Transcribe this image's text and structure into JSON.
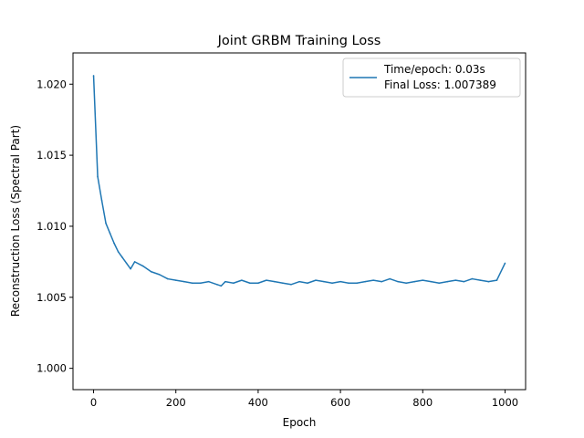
{
  "chart_data": {
    "type": "line",
    "title": "Joint GRBM Training Loss",
    "xlabel": "Epoch",
    "ylabel": "Reconstruction Loss (Spectral Part)",
    "xlim": [
      -50,
      1050
    ],
    "ylim": [
      0.9985,
      1.0222
    ],
    "xticks": [
      0,
      200,
      400,
      600,
      800,
      1000
    ],
    "xtick_labels": [
      "0",
      "200",
      "400",
      "600",
      "800",
      "1000"
    ],
    "yticks": [
      1.0,
      1.005,
      1.01,
      1.015,
      1.02
    ],
    "ytick_labels": [
      "1.000",
      "1.005",
      "1.010",
      "1.015",
      "1.020"
    ],
    "grid": false,
    "legend_position": "upper right",
    "legend_lines": [
      "Time/epoch: 0.03s",
      "Final Loss: 1.007389"
    ],
    "series": [
      {
        "color": "#1f77b4",
        "x": [
          0,
          10,
          20,
          30,
          40,
          50,
          60,
          70,
          80,
          90,
          100,
          120,
          140,
          160,
          180,
          200,
          220,
          240,
          260,
          280,
          300,
          310,
          320,
          340,
          360,
          380,
          400,
          420,
          440,
          460,
          480,
          500,
          520,
          540,
          560,
          580,
          600,
          620,
          640,
          660,
          680,
          700,
          720,
          740,
          760,
          780,
          800,
          820,
          840,
          860,
          880,
          900,
          920,
          940,
          960,
          980,
          1000
        ],
        "y": [
          1.0206,
          1.0135,
          1.0118,
          1.0102,
          1.0095,
          1.0088,
          1.0082,
          1.0078,
          1.0074,
          1.007,
          1.0075,
          1.0072,
          1.0068,
          1.0066,
          1.0063,
          1.0062,
          1.0061,
          1.006,
          1.006,
          1.0061,
          1.0059,
          1.0058,
          1.0061,
          1.006,
          1.0062,
          1.006,
          1.006,
          1.0062,
          1.0061,
          1.006,
          1.0059,
          1.0061,
          1.006,
          1.0062,
          1.0061,
          1.006,
          1.0061,
          1.006,
          1.006,
          1.0061,
          1.0062,
          1.0061,
          1.0063,
          1.0061,
          1.006,
          1.0061,
          1.0062,
          1.0061,
          1.006,
          1.0061,
          1.0062,
          1.0061,
          1.0063,
          1.0062,
          1.0061,
          1.0062,
          1.0074
        ]
      }
    ]
  }
}
